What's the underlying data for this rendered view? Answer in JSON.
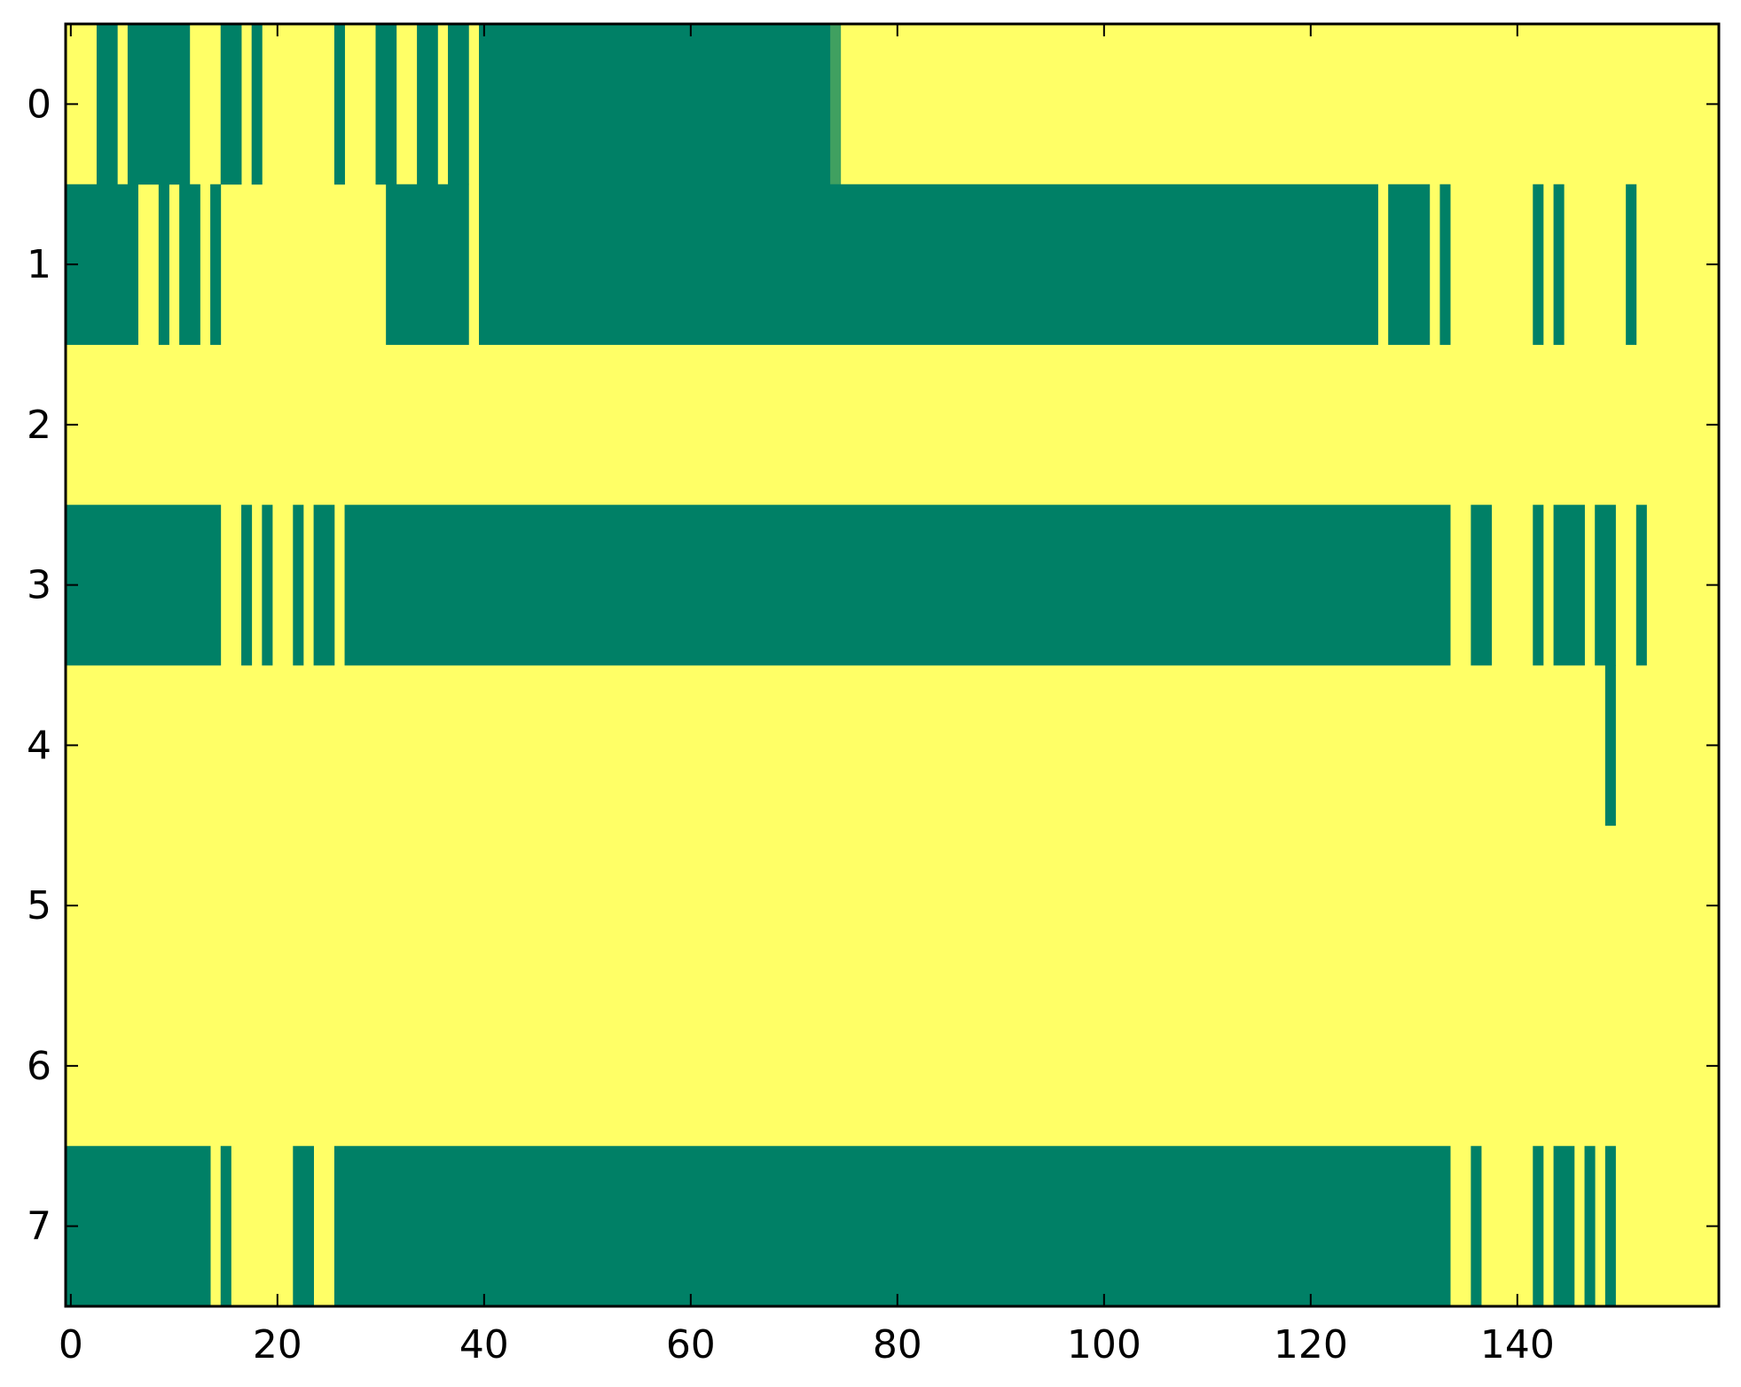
{
  "chart_data": {
    "type": "heatmap",
    "title": "",
    "xlabel": "",
    "ylabel": "",
    "xlim": [
      -0.5,
      159.5
    ],
    "ylim": [
      7.5,
      -0.5
    ],
    "x_ticks": [
      "0",
      "20",
      "40",
      "60",
      "80",
      "100",
      "120",
      "140"
    ],
    "x_tick_values": [
      0,
      20,
      40,
      60,
      80,
      100,
      120,
      140
    ],
    "y_ticks": [
      "0",
      "1",
      "2",
      "3",
      "4",
      "5",
      "6",
      "7"
    ],
    "y_tick_values": [
      0,
      1,
      2,
      3,
      4,
      5,
      6,
      7
    ],
    "n_cols": 160,
    "n_rows": 8,
    "value_encoding": "1 = green cell, 0 = yellow cell, 0.5 = intermediate",
    "colors": {
      "low": "#ffff66",
      "high": "#008066",
      "mid": "#40a060"
    },
    "rows": [
      {
        "row": 0,
        "runs": [
          [
            3,
            4,
            1
          ],
          [
            6,
            11,
            1
          ],
          [
            15,
            16,
            1
          ],
          [
            18,
            18,
            1
          ],
          [
            26,
            26,
            1
          ],
          [
            30,
            31,
            1
          ],
          [
            34,
            35,
            1
          ],
          [
            37,
            38,
            1
          ],
          [
            40,
            73,
            1
          ],
          [
            74,
            74,
            0.5
          ]
        ]
      },
      {
        "row": 1,
        "runs": [
          [
            0,
            6,
            1
          ],
          [
            9,
            9,
            1
          ],
          [
            11,
            12,
            1
          ],
          [
            14,
            14,
            1
          ],
          [
            31,
            38,
            1
          ],
          [
            40,
            126,
            1
          ],
          [
            128,
            131,
            1
          ],
          [
            133,
            133,
            1
          ],
          [
            142,
            142,
            1
          ],
          [
            144,
            144,
            1
          ],
          [
            151,
            151,
            1
          ]
        ]
      },
      {
        "row": 2,
        "runs": []
      },
      {
        "row": 3,
        "runs": [
          [
            0,
            14,
            1
          ],
          [
            17,
            17,
            1
          ],
          [
            19,
            19,
            1
          ],
          [
            22,
            22,
            1
          ],
          [
            24,
            25,
            1
          ],
          [
            27,
            133,
            1
          ],
          [
            136,
            137,
            1
          ],
          [
            142,
            142,
            1
          ],
          [
            144,
            146,
            1
          ],
          [
            148,
            149,
            1
          ],
          [
            152,
            152,
            1
          ]
        ]
      },
      {
        "row": 4,
        "runs": [
          [
            149,
            149,
            1
          ]
        ]
      },
      {
        "row": 5,
        "runs": []
      },
      {
        "row": 6,
        "runs": []
      },
      {
        "row": 7,
        "runs": [
          [
            0,
            13,
            1
          ],
          [
            15,
            15,
            1
          ],
          [
            22,
            23,
            1
          ],
          [
            26,
            133,
            1
          ],
          [
            136,
            136,
            1
          ],
          [
            142,
            142,
            1
          ],
          [
            144,
            145,
            1
          ],
          [
            147,
            147,
            1
          ],
          [
            149,
            149,
            1
          ]
        ]
      }
    ]
  }
}
